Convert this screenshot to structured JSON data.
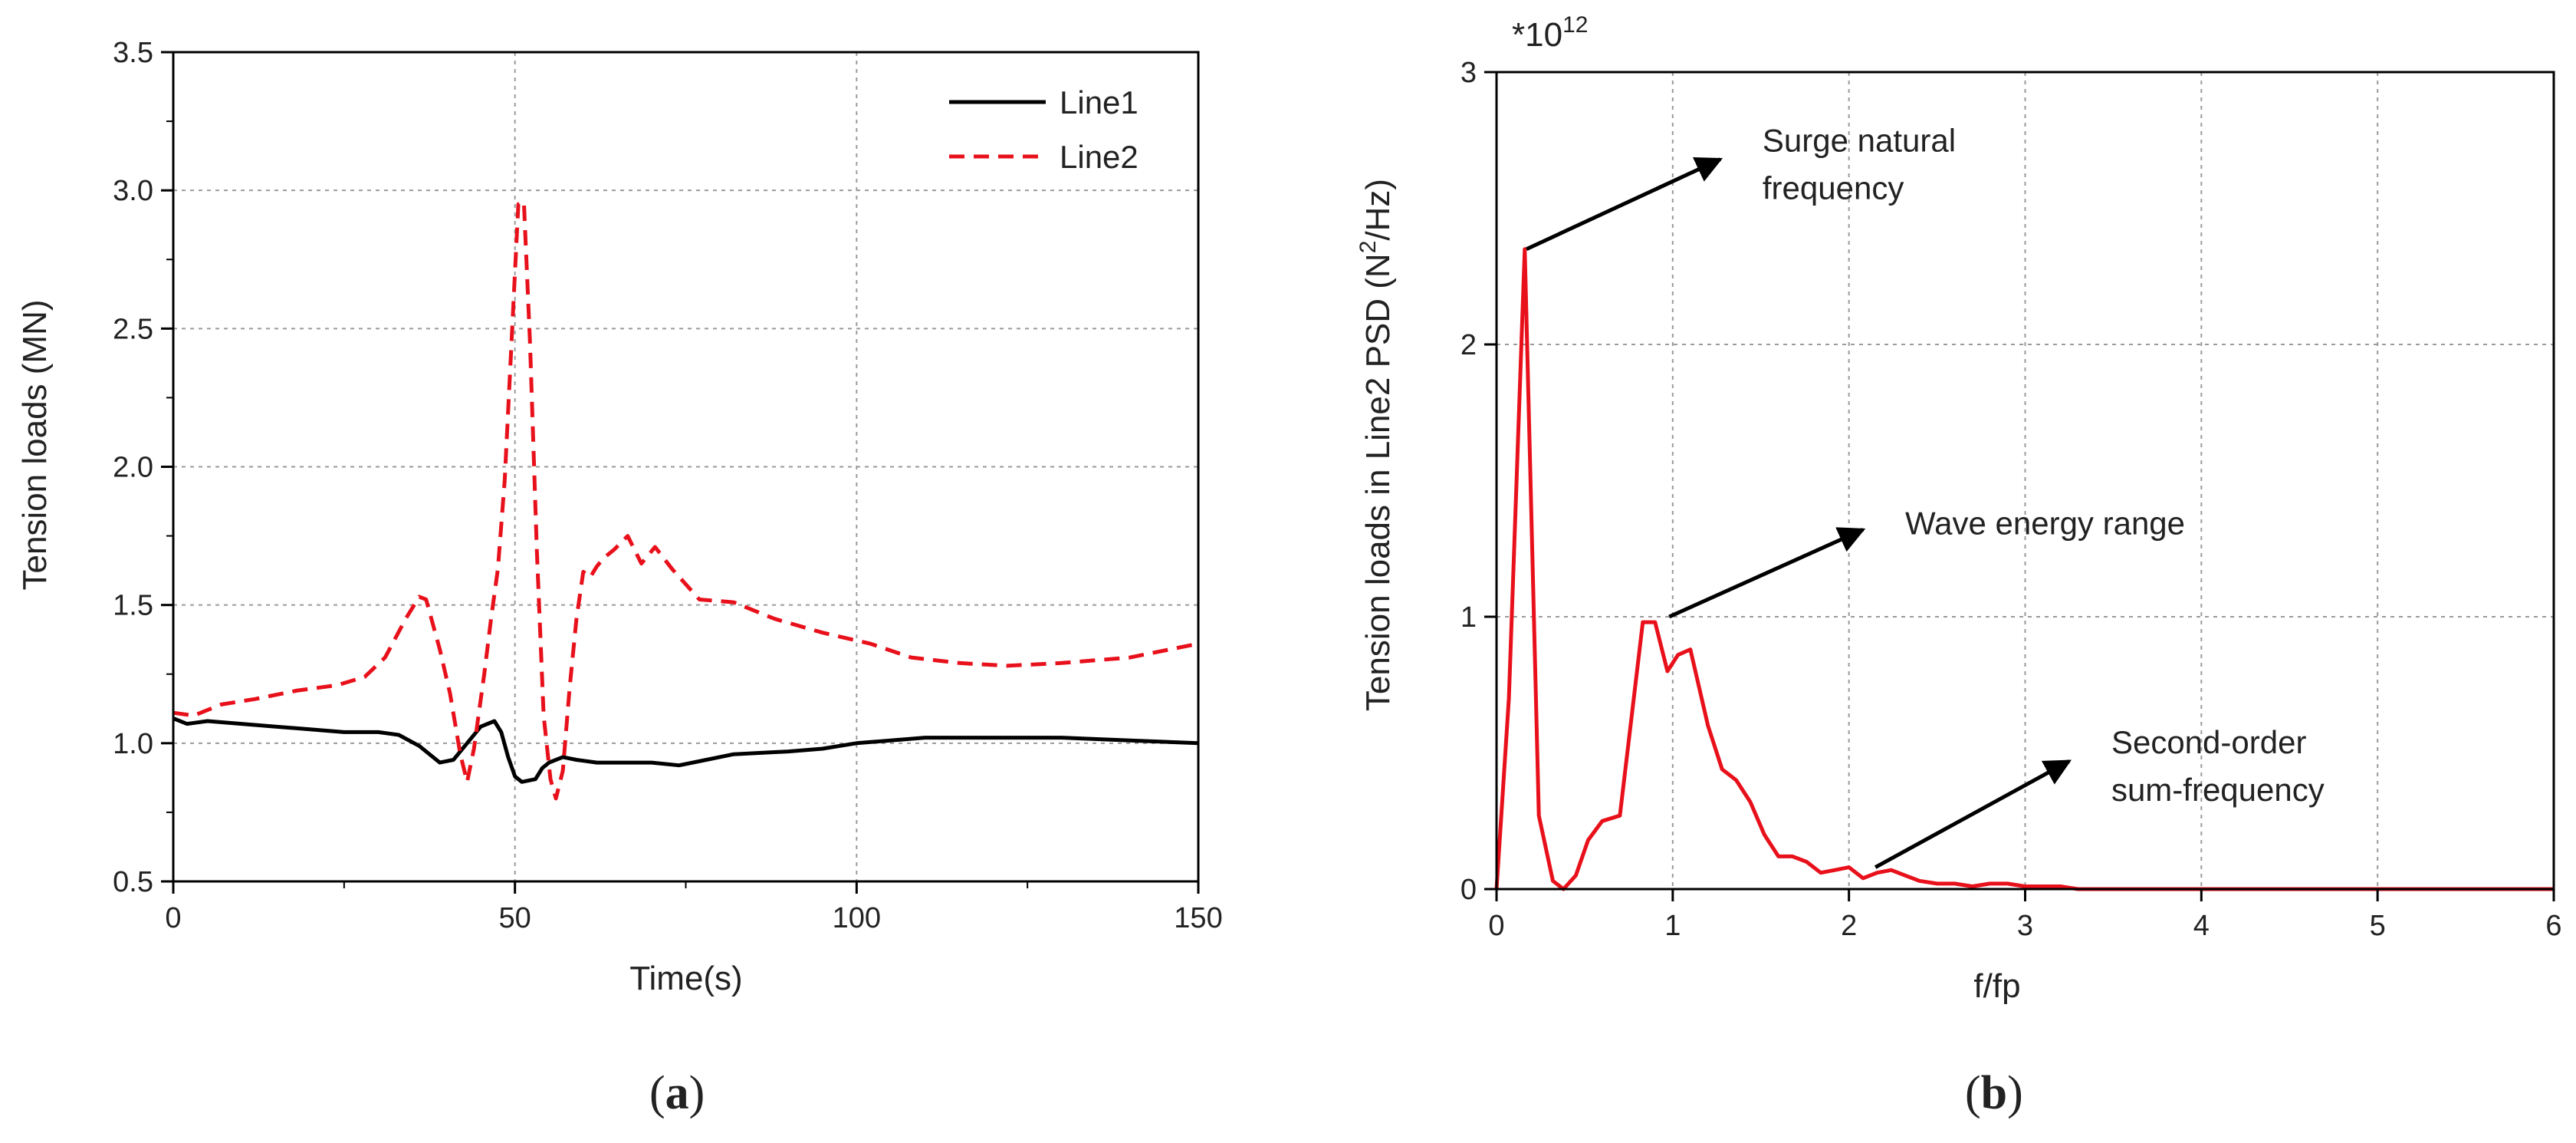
{
  "chart_data": [
    {
      "type": "line",
      "panel_label": "a",
      "xlabel": "Time(s)",
      "ylabel": "Tension loads (MN)",
      "xlim": [
        0,
        150
      ],
      "ylim": [
        0.5,
        3.5
      ],
      "xticks": [
        "0",
        "50",
        "100",
        "150"
      ],
      "yticks": [
        "0.5",
        "1.0",
        "1.5",
        "2.0",
        "2.5",
        "3.0",
        "3.5"
      ],
      "grid": true,
      "legend_position": "top-right",
      "series": [
        {
          "name": "Line1",
          "style": "solid",
          "color": "#000000",
          "points": [
            [
              0,
              1.09
            ],
            [
              2,
              1.07
            ],
            [
              5,
              1.08
            ],
            [
              10,
              1.07
            ],
            [
              15,
              1.06
            ],
            [
              20,
              1.05
            ],
            [
              25,
              1.04
            ],
            [
              30,
              1.04
            ],
            [
              33,
              1.03
            ],
            [
              36,
              0.99
            ],
            [
              39,
              0.93
            ],
            [
              41,
              0.94
            ],
            [
              43,
              1.0
            ],
            [
              45,
              1.06
            ],
            [
              47,
              1.08
            ],
            [
              48,
              1.04
            ],
            [
              49,
              0.95
            ],
            [
              50,
              0.88
            ],
            [
              51,
              0.86
            ],
            [
              53,
              0.87
            ],
            [
              54,
              0.91
            ],
            [
              55,
              0.93
            ],
            [
              57,
              0.95
            ],
            [
              59,
              0.94
            ],
            [
              62,
              0.93
            ],
            [
              66,
              0.93
            ],
            [
              70,
              0.93
            ],
            [
              74,
              0.92
            ],
            [
              78,
              0.94
            ],
            [
              82,
              0.96
            ],
            [
              90,
              0.97
            ],
            [
              95,
              0.98
            ],
            [
              100,
              1.0
            ],
            [
              105,
              1.01
            ],
            [
              110,
              1.02
            ],
            [
              120,
              1.02
            ],
            [
              130,
              1.02
            ],
            [
              140,
              1.01
            ],
            [
              150,
              1.0
            ]
          ]
        },
        {
          "name": "Line2",
          "style": "dashed",
          "color": "#e8101a",
          "points": [
            [
              0,
              1.11
            ],
            [
              3,
              1.1
            ],
            [
              7,
              1.14
            ],
            [
              12,
              1.16
            ],
            [
              18,
              1.19
            ],
            [
              24,
              1.21
            ],
            [
              28,
              1.24
            ],
            [
              31,
              1.31
            ],
            [
              34,
              1.45
            ],
            [
              36,
              1.53
            ],
            [
              37,
              1.52
            ],
            [
              39,
              1.34
            ],
            [
              40.5,
              1.18
            ],
            [
              42,
              0.96
            ],
            [
              43,
              0.86
            ],
            [
              44,
              0.98
            ],
            [
              45.5,
              1.25
            ],
            [
              46.5,
              1.45
            ],
            [
              47.5,
              1.63
            ],
            [
              48.5,
              1.95
            ],
            [
              49.5,
              2.45
            ],
            [
              50.5,
              2.95
            ],
            [
              51.3,
              2.96
            ],
            [
              52.2,
              2.45
            ],
            [
              53.2,
              1.7
            ],
            [
              54.2,
              1.1
            ],
            [
              55.2,
              0.87
            ],
            [
              56,
              0.8
            ],
            [
              57,
              0.9
            ],
            [
              58,
              1.2
            ],
            [
              59,
              1.45
            ],
            [
              60,
              1.62
            ],
            [
              61,
              1.6
            ],
            [
              62,
              1.64
            ],
            [
              63,
              1.67
            ],
            [
              64.5,
              1.7
            ],
            [
              66.5,
              1.75
            ],
            [
              68.5,
              1.65
            ],
            [
              70.5,
              1.71
            ],
            [
              73,
              1.63
            ],
            [
              77,
              1.52
            ],
            [
              82,
              1.51
            ],
            [
              88,
              1.45
            ],
            [
              95,
              1.4
            ],
            [
              102,
              1.36
            ],
            [
              108,
              1.31
            ],
            [
              115,
              1.29
            ],
            [
              122,
              1.28
            ],
            [
              130,
              1.29
            ],
            [
              140,
              1.31
            ],
            [
              150,
              1.36
            ]
          ]
        }
      ]
    },
    {
      "type": "line",
      "panel_label": "b",
      "xlabel": "f/fp",
      "ylabel": "Tension loads in Line2 PSD (N",
      "ylabel_sup": "2",
      "ylabel_end": "/Hz)",
      "y_multiplier": "*10",
      "y_multiplier_exp": "12",
      "xlim": [
        0,
        6
      ],
      "ylim": [
        0,
        3
      ],
      "xticks": [
        "0",
        "1",
        "2",
        "3",
        "4",
        "5",
        "6"
      ],
      "yticks": [
        "0",
        "1",
        "2",
        "3"
      ],
      "grid": true,
      "series": [
        {
          "name": "Line2 PSD",
          "style": "solid",
          "color": "#e8101a",
          "points": [
            [
              0,
              0.0
            ],
            [
              0.07,
              0.7
            ],
            [
              0.16,
              2.35
            ],
            [
              0.24,
              0.27
            ],
            [
              0.32,
              0.03
            ],
            [
              0.38,
              0.0
            ],
            [
              0.45,
              0.05
            ],
            [
              0.52,
              0.18
            ],
            [
              0.6,
              0.25
            ],
            [
              0.7,
              0.27
            ],
            [
              0.83,
              0.98
            ],
            [
              0.9,
              0.98
            ],
            [
              0.97,
              0.8
            ],
            [
              1.03,
              0.86
            ],
            [
              1.1,
              0.88
            ],
            [
              1.2,
              0.6
            ],
            [
              1.28,
              0.44
            ],
            [
              1.36,
              0.4
            ],
            [
              1.44,
              0.32
            ],
            [
              1.52,
              0.2
            ],
            [
              1.6,
              0.12
            ],
            [
              1.68,
              0.12
            ],
            [
              1.76,
              0.1
            ],
            [
              1.84,
              0.06
            ],
            [
              1.92,
              0.07
            ],
            [
              2.0,
              0.08
            ],
            [
              2.08,
              0.04
            ],
            [
              2.16,
              0.06
            ],
            [
              2.24,
              0.07
            ],
            [
              2.32,
              0.05
            ],
            [
              2.4,
              0.03
            ],
            [
              2.5,
              0.02
            ],
            [
              2.6,
              0.02
            ],
            [
              2.7,
              0.01
            ],
            [
              2.8,
              0.02
            ],
            [
              2.9,
              0.02
            ],
            [
              3.0,
              0.01
            ],
            [
              3.1,
              0.01
            ],
            [
              3.2,
              0.01
            ],
            [
              3.3,
              0.0
            ],
            [
              3.5,
              0.0
            ],
            [
              4.0,
              0.0
            ],
            [
              5.0,
              0.0
            ],
            [
              6.0,
              0.0
            ]
          ]
        }
      ],
      "annotations": [
        {
          "lines": [
            "Surge natural",
            "frequency"
          ],
          "from": [
            0.17,
            2.35
          ],
          "to": [
            1.27,
            2.68
          ]
        },
        {
          "lines": [
            "Wave energy range"
          ],
          "from": [
            0.98,
            1.0
          ],
          "to": [
            2.08,
            1.32
          ]
        },
        {
          "lines": [
            "Second-order",
            "sum-frequency"
          ],
          "from": [
            2.15,
            0.08
          ],
          "to": [
            3.25,
            0.47
          ]
        }
      ]
    }
  ]
}
